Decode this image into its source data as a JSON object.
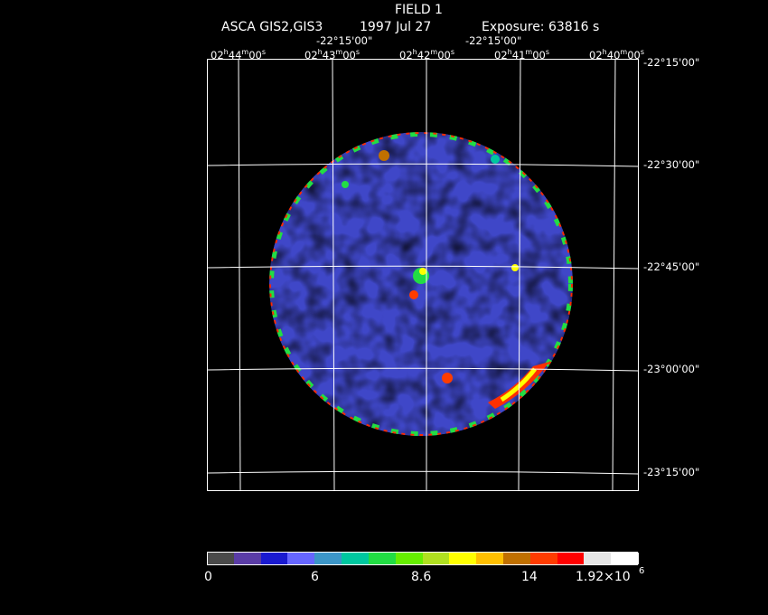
{
  "header": {
    "title": "FIELD 1",
    "instrument": "ASCA GIS2,GIS3",
    "date": "1997 Jul 27",
    "exposure": "Exposure: 63816 s"
  },
  "axes": {
    "top_dec_labels": [
      "-22°15'00\"",
      "-22°15'00\""
    ],
    "ra_labels": [
      "02h44m00s",
      "02h43m00s",
      "02h42m00s",
      "02h41m00s",
      "02h40m00s"
    ],
    "dec_labels": [
      "-22°15'00\"",
      "-22°30'00\"",
      "-22°45'00\"",
      "-23°00'00\"",
      "-23°15'00\""
    ]
  },
  "colorbar": {
    "colors": [
      "#4a4a4a",
      "#5a3ca6",
      "#1a1ad0",
      "#6666ff",
      "#3c96c8",
      "#00c8a0",
      "#22dd44",
      "#66ee00",
      "#b0e020",
      "#ffff00",
      "#ffc000",
      "#c07000",
      "#ff3c00",
      "#ff0000",
      "#e6e6e6",
      "#ffffff"
    ],
    "tick_labels": [
      "0",
      "6",
      "8.6",
      "14",
      "1.92×10"
    ],
    "tick_exponent": "6"
  }
}
